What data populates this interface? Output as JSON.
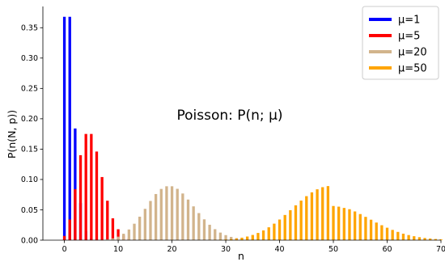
{
  "chart_data": {
    "type": "bar",
    "xlabel": "n",
    "ylabel": "P(n(N, p))",
    "annotation": "Poisson: P(n; μ)",
    "xlim": [
      -4,
      70
    ],
    "ylim": [
      0,
      0.385
    ],
    "xticks": [
      "0",
      "10",
      "20",
      "30",
      "40",
      "50",
      "60",
      "70"
    ],
    "yticks": [
      "0.00",
      "0.05",
      "0.10",
      "0.15",
      "0.20",
      "0.25",
      "0.30",
      "0.35"
    ],
    "legend_position": "top-right",
    "grid": false,
    "series": [
      {
        "name": "μ=1",
        "color": "#0000ff",
        "x": [
          0,
          1,
          2,
          3,
          4,
          5
        ],
        "values": [
          0.368,
          0.368,
          0.184,
          0.061,
          0.015,
          0.003
        ]
      },
      {
        "name": "μ=5",
        "color": "#ff0000",
        "x": [
          0,
          1,
          2,
          3,
          4,
          5,
          6,
          7,
          8,
          9,
          10,
          11,
          12,
          13
        ],
        "values": [
          0.007,
          0.034,
          0.084,
          0.14,
          0.175,
          0.175,
          0.146,
          0.104,
          0.065,
          0.036,
          0.018,
          0.008,
          0.003,
          0.001
        ]
      },
      {
        "name": "μ=20",
        "color": "#d2b48c",
        "x": [
          5,
          6,
          7,
          8,
          9,
          10,
          11,
          12,
          13,
          14,
          15,
          16,
          17,
          18,
          19,
          20,
          21,
          22,
          23,
          24,
          25,
          26,
          27,
          28,
          29,
          30,
          31,
          32,
          33,
          34,
          35,
          36,
          37,
          38
        ],
        "values": [
          0.0001,
          0.0002,
          0.0005,
          0.0013,
          0.0029,
          0.0058,
          0.0106,
          0.0176,
          0.0271,
          0.0387,
          0.0516,
          0.0646,
          0.076,
          0.0844,
          0.0888,
          0.0888,
          0.0846,
          0.0769,
          0.0669,
          0.0557,
          0.0446,
          0.0343,
          0.0254,
          0.0181,
          0.0125,
          0.0083,
          0.0054,
          0.0034,
          0.002,
          0.0012,
          0.0007,
          0.0004,
          0.0002,
          0.0001
        ]
      },
      {
        "name": "μ=50",
        "color": "#ffa500",
        "x": [
          28,
          29,
          30,
          31,
          32,
          33,
          34,
          35,
          36,
          37,
          38,
          39,
          40,
          41,
          42,
          43,
          44,
          45,
          46,
          47,
          48,
          49,
          50,
          51,
          52,
          53,
          54,
          55,
          56,
          57,
          58,
          59,
          60,
          61,
          62,
          63,
          64,
          65,
          66,
          67,
          68,
          69,
          70
        ],
        "values": [
          0.0004,
          0.0007,
          0.0011,
          0.0017,
          0.0027,
          0.0041,
          0.006,
          0.0086,
          0.0119,
          0.0161,
          0.0212,
          0.0272,
          0.034,
          0.0415,
          0.0494,
          0.0574,
          0.0652,
          0.0725,
          0.0788,
          0.0838,
          0.0873,
          0.0891,
          0.0563,
          0.0552,
          0.0531,
          0.051,
          0.0473,
          0.043,
          0.0384,
          0.0337,
          0.029,
          0.0246,
          0.0205,
          0.0169,
          0.0136,
          0.0107,
          0.0084,
          0.0065,
          0.0049,
          0.0036,
          0.0027,
          0.0019,
          0.0014
        ]
      }
    ]
  }
}
